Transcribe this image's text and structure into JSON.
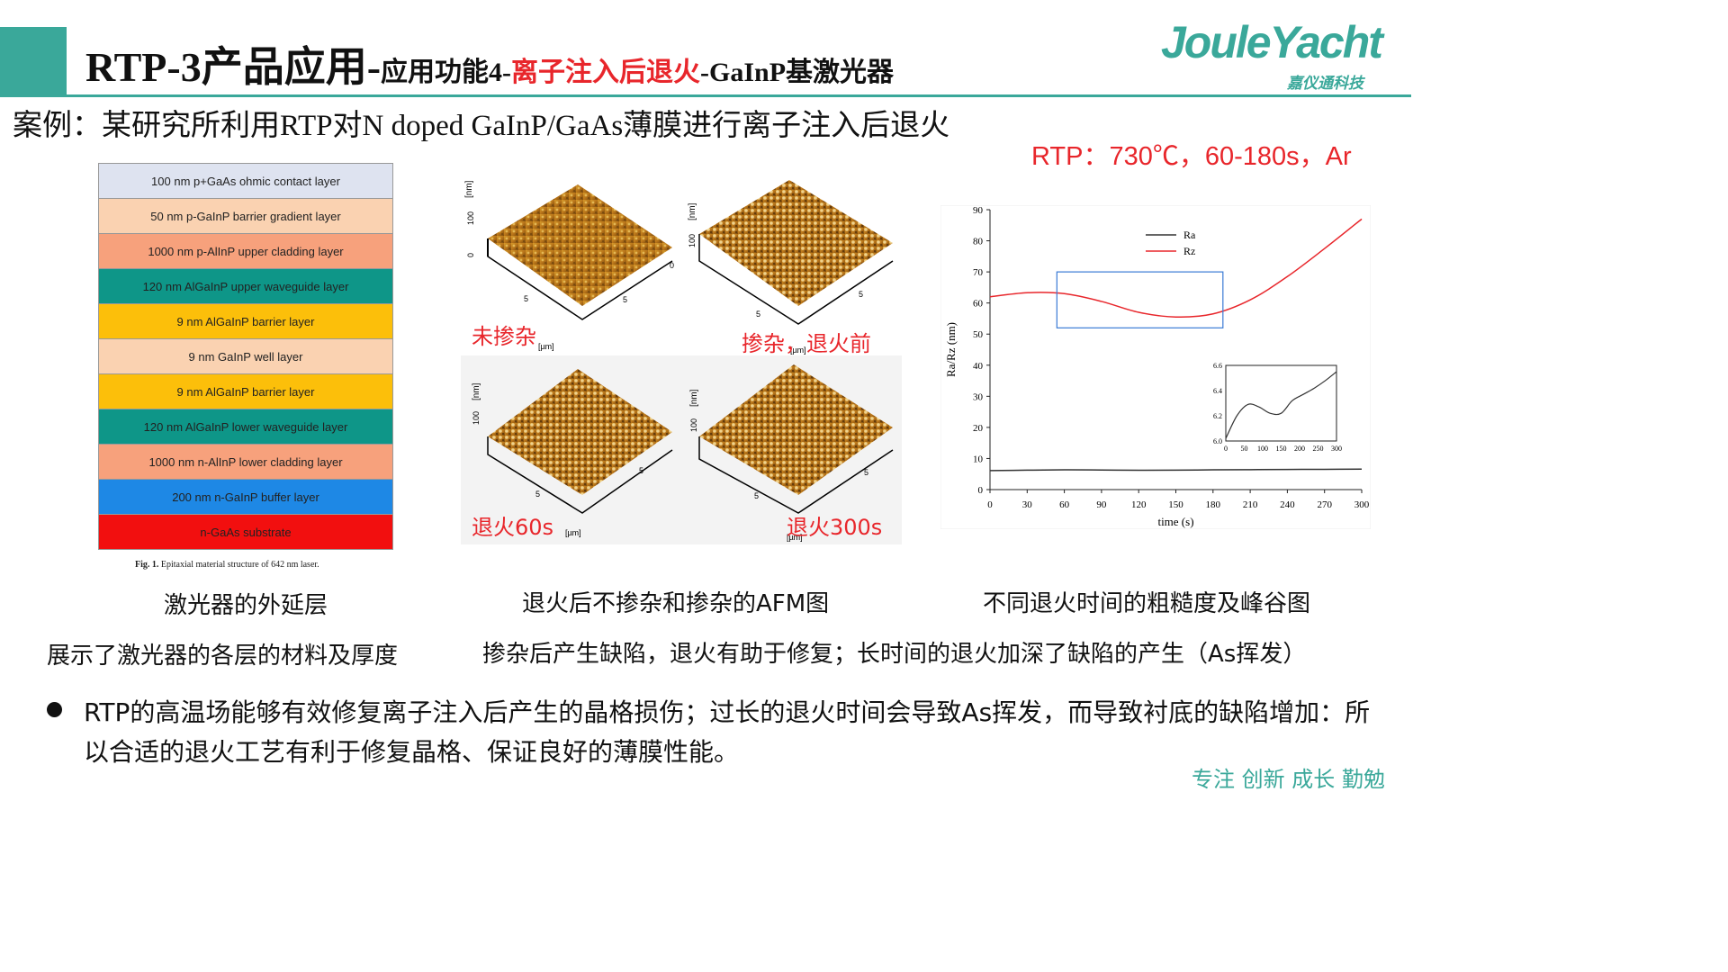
{
  "header": {
    "title_main": "RTP-3产品应用-",
    "title_part1": "应用功能4-",
    "title_red": "离子注入后退火",
    "title_part2": "-GaInP基激光器",
    "logo_text": "JouleYacht",
    "logo_sub": "嘉仪通科技"
  },
  "case_text": "案例：某研究所利用RTP对N doped GaInP/GaAs薄膜进行离子注入后退火",
  "rtp_condition": "RTP：730℃，60-180s，Ar",
  "layers": [
    {
      "label": "100 nm p+GaAs ohmic contact layer",
      "color": "#dee3f0"
    },
    {
      "label": "50 nm p-GaInP barrier gradient layer",
      "color": "#fad2b1"
    },
    {
      "label": "1000 nm p-AlInP upper cladding layer",
      "color": "#f7a17c"
    },
    {
      "label": "120 nm AlGaInP upper waveguide layer",
      "color": "#0e9688"
    },
    {
      "label": "9 nm AlGaInP barrier layer",
      "color": "#fcbf0a"
    },
    {
      "label": "9 nm GaInP well layer",
      "color": "#fad2b1"
    },
    {
      "label": "9 nm AlGaInP barrier layer",
      "color": "#fcbf0a"
    },
    {
      "label": "120 nm AlGaInP lower waveguide layer",
      "color": "#0e9688"
    },
    {
      "label": "1000 nm n-AlInP lower cladding layer",
      "color": "#f7a17c"
    },
    {
      "label": "200 nm n-GaInP buffer layer",
      "color": "#1e88e5"
    },
    {
      "label": "n-GaAs substrate",
      "color": "#f20f0f"
    }
  ],
  "fig1_label": "Fig. 1.",
  "fig1_caption": "Epitaxial material structure of 642 nm laser.",
  "afm": {
    "panels": [
      {
        "label": "未掺杂"
      },
      {
        "label": "掺杂，退火前"
      },
      {
        "label": "退火60s"
      },
      {
        "label": "退火300s"
      }
    ],
    "axis_nm": "[nm]",
    "axis_um": "[µm]",
    "tick_100": "100",
    "tick_0": "0",
    "tick_5": "5"
  },
  "chart_data": {
    "type": "line",
    "xlabel": "time (s)",
    "ylabel": "Ra/Rz (nm)",
    "xlim": [
      0,
      300
    ],
    "ylim": [
      0,
      90
    ],
    "xticks": [
      0,
      30,
      60,
      90,
      120,
      150,
      180,
      210,
      240,
      270,
      300
    ],
    "yticks": [
      0,
      10,
      20,
      30,
      40,
      50,
      60,
      70,
      80,
      90
    ],
    "legend_position": "top-left",
    "series": [
      {
        "name": "Ra",
        "color": "#333333",
        "x": [
          0,
          30,
          60,
          90,
          120,
          150,
          180,
          210,
          240,
          270,
          300
        ],
        "y": [
          6.1,
          6.25,
          6.35,
          6.3,
          6.22,
          6.25,
          6.35,
          6.42,
          6.48,
          6.52,
          6.6
        ]
      },
      {
        "name": "Rz",
        "color": "#e8262b",
        "x": [
          0,
          30,
          60,
          90,
          120,
          150,
          180,
          210,
          240,
          270,
          300
        ],
        "y": [
          62,
          63.3,
          63,
          60.5,
          57,
          55.5,
          56.5,
          61,
          68.5,
          77.5,
          87
        ]
      }
    ],
    "highlight_box": {
      "x": [
        54,
        188
      ],
      "y": [
        52,
        70
      ]
    },
    "inset": {
      "xlim": [
        0,
        300
      ],
      "ylim": [
        6.0,
        6.6
      ],
      "xticks": [
        0,
        50,
        100,
        150,
        200,
        250,
        300
      ],
      "yticks": [
        6.0,
        6.2,
        6.4,
        6.6
      ],
      "x": [
        0,
        30,
        60,
        90,
        120,
        150,
        180,
        210,
        240,
        270,
        300
      ],
      "y": [
        6.02,
        6.2,
        6.29,
        6.27,
        6.22,
        6.22,
        6.32,
        6.37,
        6.42,
        6.48,
        6.55
      ]
    }
  },
  "captions": {
    "left_title": "激光器的外延层",
    "left_desc": "展示了激光器的各层的材料及厚度",
    "mid_title": "退火后不掺杂和掺杂的AFM图",
    "mid_desc": "掺杂后产生缺陷，退火有助于修复；长时间的退火加深了缺陷的产生（As挥发）",
    "right_title": "不同退火时间的粗糙度及峰谷图"
  },
  "bullet": "RTP的高温场能够有效修复离子注入后产生的晶格损伤；过长的退火时间会导致As挥发，而导致衬底的缺陷增加：所以合适的退火工艺有利于修复晶格、保证良好的薄膜性能。",
  "slogan": "专注 创新 成长 勤勉"
}
